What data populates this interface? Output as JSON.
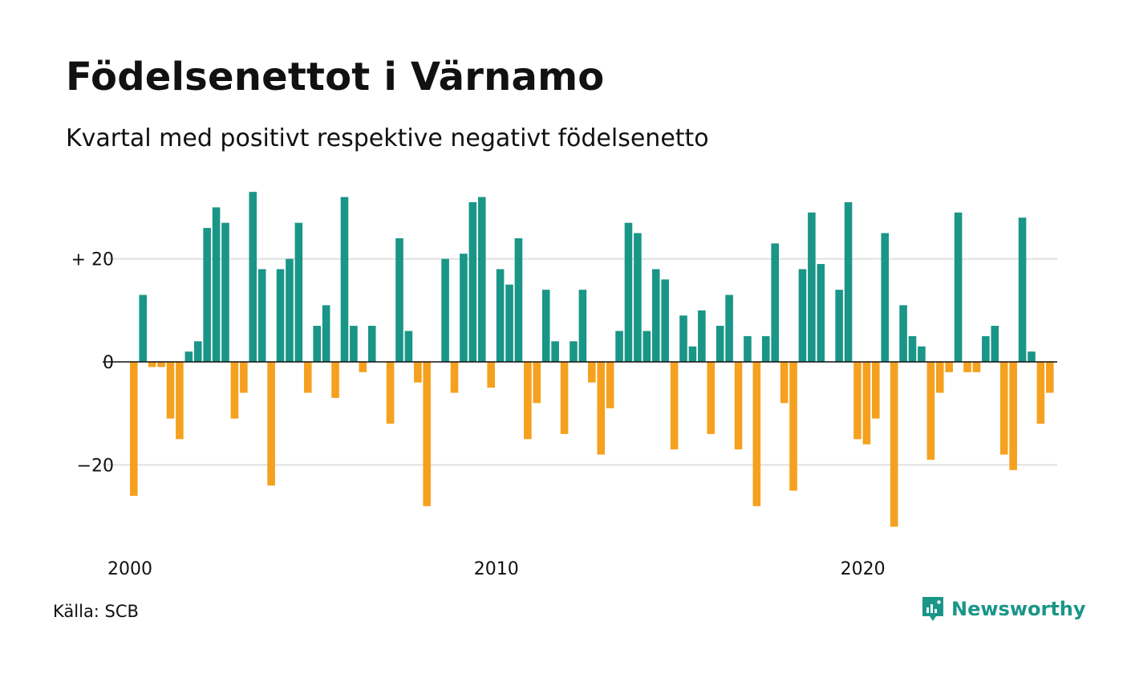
{
  "title": "Födelsenettot i Värnamo",
  "subtitle": "Kvartal med positivt respektive negativt födelsenetto",
  "source": "Källa: SCB",
  "brand": {
    "name": "Newsworthy",
    "icon": "newsworthy-logo-icon"
  },
  "colors": {
    "positive": "#1a9688",
    "negative": "#f5a11f",
    "gridline": "#e0e0e0",
    "zero_line": "#111111",
    "brand": "#1a9688"
  },
  "chart_data": {
    "type": "bar",
    "title": "Födelsenettot i Värnamo",
    "subtitle": "Kvartal med positivt respektive negativt födelsenetto",
    "x_start": "2000",
    "x_step": "quarter",
    "x_tick_labels": [
      {
        "label": "2000",
        "x": 2000
      },
      {
        "label": "2010",
        "x": 2010
      },
      {
        "label": "2020",
        "x": 2020
      }
    ],
    "y_tick_labels": [
      {
        "label": "+ 20",
        "value": 20
      },
      {
        "label": "0",
        "value": 0
      },
      {
        "label": "−20",
        "value": -20
      }
    ],
    "ylim": [
      -35,
      35
    ],
    "grid": true,
    "values": [
      -26,
      13,
      -1,
      -1,
      -11,
      -15,
      2,
      4,
      26,
      30,
      27,
      -11,
      -6,
      33,
      18,
      -24,
      18,
      20,
      27,
      -6,
      7,
      11,
      -7,
      32,
      7,
      -2,
      7,
      0,
      -12,
      24,
      6,
      -4,
      -28,
      0,
      20,
      -6,
      21,
      31,
      32,
      -5,
      18,
      15,
      24,
      -15,
      -8,
      14,
      4,
      -14,
      4,
      14,
      -4,
      -18,
      -9,
      6,
      27,
      25,
      6,
      18,
      16,
      -17,
      9,
      3,
      10,
      -14,
      7,
      13,
      -17,
      5,
      -28,
      5,
      23,
      -8,
      -25,
      18,
      29,
      19,
      0,
      14,
      31,
      -15,
      -16,
      -11,
      25,
      -32,
      11,
      5,
      3,
      -19,
      -6,
      -2,
      29,
      -2,
      -2,
      5,
      7,
      -18,
      -21,
      28,
      2,
      -12,
      -6
    ]
  }
}
